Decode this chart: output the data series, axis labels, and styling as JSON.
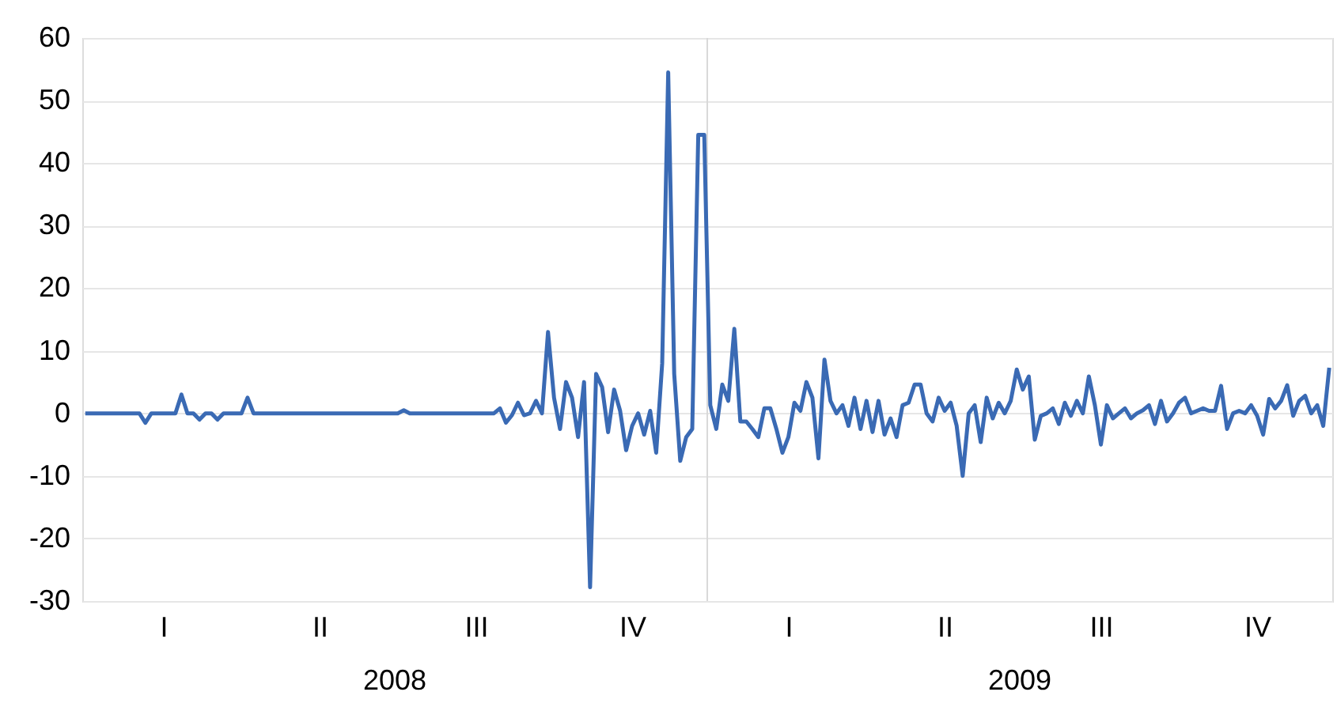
{
  "chart_data": {
    "type": "line",
    "categories": [
      null,
      null,
      null,
      null,
      null,
      null,
      null,
      null,
      null,
      null,
      null,
      null,
      null,
      "I",
      null,
      null,
      null,
      null,
      null,
      null,
      null,
      null,
      null,
      null,
      null,
      null,
      null,
      null,
      null,
      null,
      null,
      null,
      null,
      null,
      null,
      null,
      null,
      null,
      null,
      "II",
      null,
      null,
      null,
      null,
      null,
      null,
      null,
      null,
      null,
      null,
      null,
      null,
      null,
      null,
      null,
      null,
      null,
      null,
      null,
      null,
      null,
      null,
      null,
      null,
      null,
      "III",
      null,
      null,
      null,
      null,
      null,
      null,
      null,
      null,
      null,
      null,
      null,
      null,
      null,
      null,
      null,
      null,
      null,
      null,
      null,
      null,
      null,
      null,
      null,
      null,
      null,
      "IV",
      null,
      null,
      null,
      null,
      null,
      null,
      null,
      null,
      null,
      null,
      null,
      null,
      null,
      null,
      null,
      null,
      null,
      null,
      null,
      null,
      null,
      null,
      null,
      null,
      null,
      "I",
      null,
      null,
      null,
      null,
      null,
      null,
      null,
      null,
      null,
      null,
      null,
      null,
      null,
      null,
      null,
      null,
      null,
      null,
      null,
      null,
      null,
      null,
      null,
      null,
      null,
      "II",
      null,
      null,
      null,
      null,
      null,
      null,
      null,
      null,
      null,
      null,
      null,
      null,
      null,
      null,
      null,
      null,
      null,
      null,
      null,
      null,
      null,
      null,
      null,
      null,
      null,
      "III",
      null,
      null,
      null,
      null,
      null,
      null,
      null,
      null,
      null,
      null,
      null,
      null,
      null,
      null,
      null,
      null,
      null,
      null,
      null,
      null,
      null,
      null,
      null,
      null,
      null,
      "IV",
      null,
      null,
      null,
      null,
      null,
      null,
      null,
      null,
      null,
      null,
      null,
      null
    ],
    "series": [
      {
        "color": "#3a6ab4",
        "values": [
          0,
          0,
          0,
          0,
          0,
          0,
          0,
          0,
          0,
          0,
          -1.5,
          0,
          0,
          0,
          0,
          0,
          3,
          0,
          0,
          -1,
          0,
          0,
          -1,
          0,
          0,
          0,
          0,
          2.5,
          0,
          0,
          0,
          0,
          0,
          0,
          0,
          0,
          0,
          0,
          0,
          0,
          0,
          0,
          0,
          0,
          0,
          0,
          0,
          0,
          0,
          0,
          0,
          0,
          0,
          0.5,
          0,
          0,
          0,
          0,
          0,
          0,
          0,
          0,
          0,
          0,
          0,
          0,
          0,
          0,
          0,
          0.8,
          -1.5,
          -0.3,
          1.7,
          -0.3,
          0,
          2,
          0,
          13,
          2.5,
          -2.5,
          5,
          2.5,
          -3.8,
          5,
          -27.8,
          6.3,
          4.2,
          -3,
          3.8,
          0.4,
          -5.9,
          -2,
          0,
          -3.4,
          0.4,
          -6.3,
          8,
          54.5,
          6.3,
          -7.6,
          -3.8,
          -2.5,
          44.5,
          44.5,
          1.3,
          -2.5,
          4.6,
          2,
          13.5,
          -1.3,
          -1.3,
          -2.5,
          -3.8,
          0.8,
          0.8,
          -2.5,
          -6.3,
          -3.8,
          1.7,
          0.4,
          5,
          2.5,
          -7.2,
          8.6,
          2,
          0,
          1.3,
          -2,
          2.5,
          -2.5,
          2,
          -3,
          2,
          -3.4,
          -0.8,
          -3.8,
          1.3,
          1.7,
          4.6,
          4.6,
          0,
          -1.3,
          2.5,
          0.4,
          1.7,
          -2,
          -10,
          0,
          1.3,
          -4.6,
          2.5,
          -0.8,
          1.7,
          0,
          2,
          7,
          3.8,
          5.9,
          -4.2,
          -0.4,
          0,
          0.8,
          -1.7,
          1.7,
          -0.4,
          2,
          0,
          5.9,
          1.3,
          -5,
          1.3,
          -0.8,
          0,
          0.8,
          -0.8,
          0,
          0.5,
          1.3,
          -1.7,
          2,
          -1.3,
          0,
          1.7,
          2.5,
          0,
          0.4,
          0.8,
          0.4,
          0.4,
          4.4,
          -2.5,
          0,
          0.4,
          0,
          1.3,
          -0.4,
          -3.4,
          2.3,
          0.8,
          2,
          4.5,
          -0.4,
          2,
          2.8,
          0,
          1.3,
          -2,
          7.3
        ]
      }
    ],
    "ylim": [
      -30,
      60
    ],
    "yticks": [
      -30,
      -20,
      -10,
      0,
      10,
      20,
      30,
      40,
      50,
      60
    ],
    "annotations": [
      "2008",
      "2009"
    ],
    "grid": "y",
    "line_style": "solid",
    "marker": "none"
  }
}
